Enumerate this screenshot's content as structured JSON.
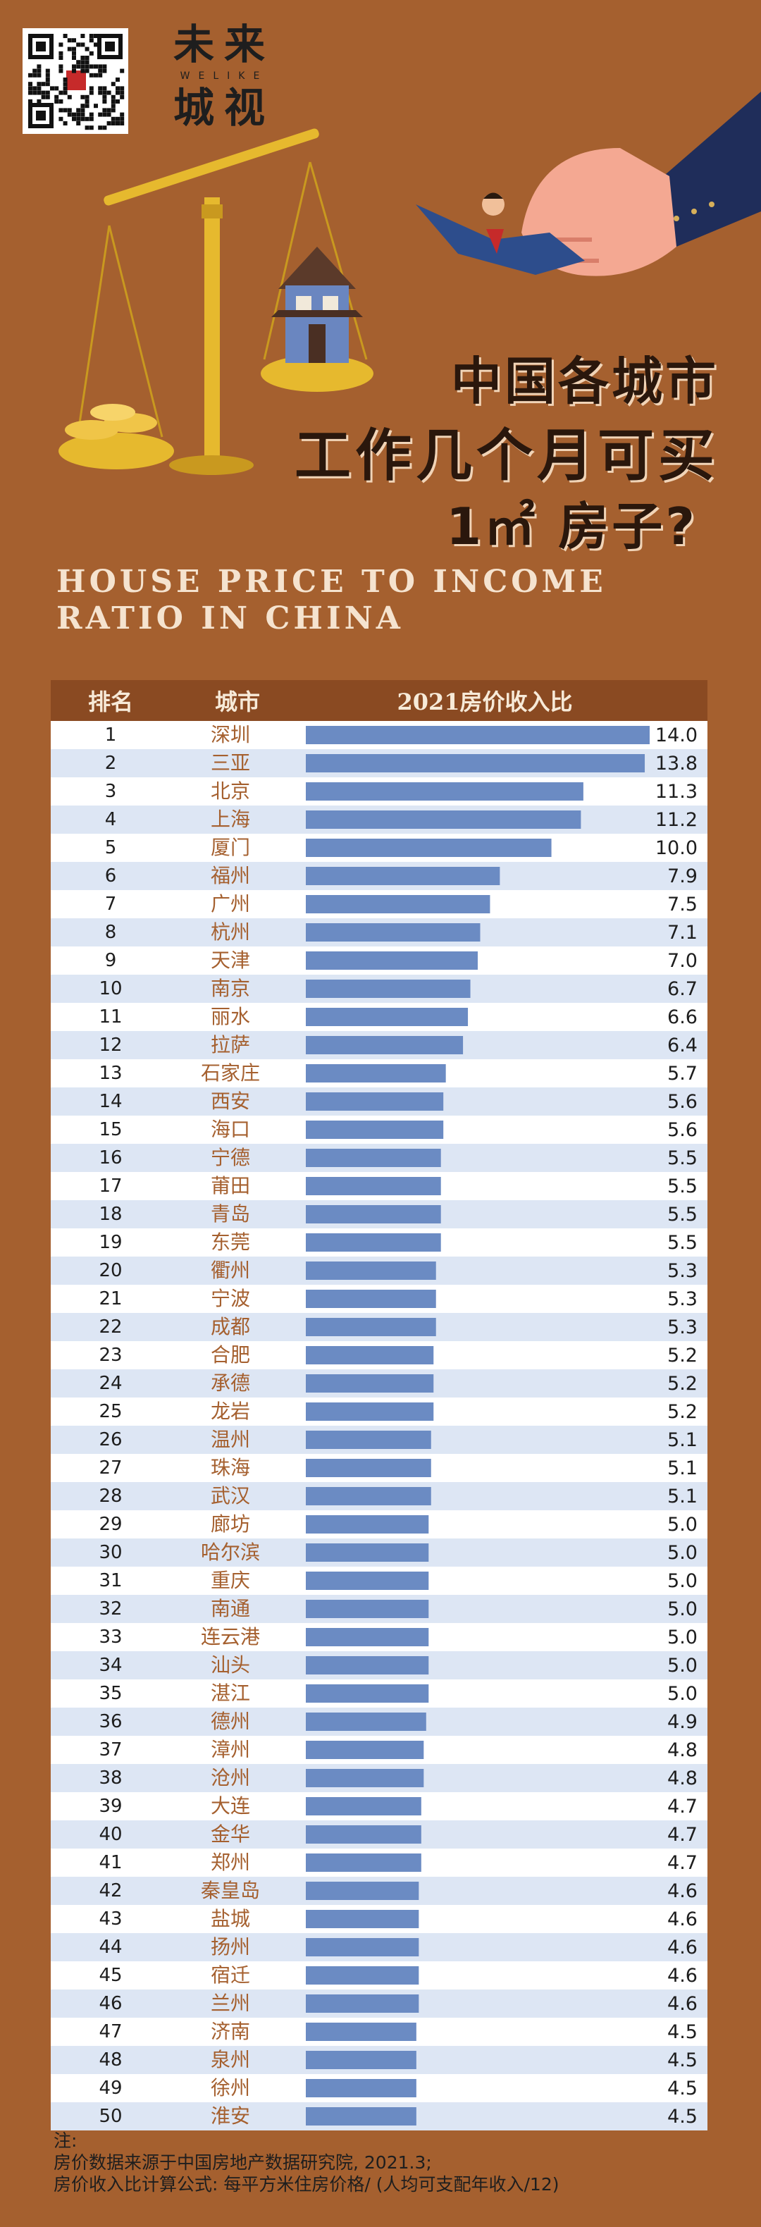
{
  "brand": {
    "line1": "未来",
    "en": "WELIKE",
    "line2": "城视"
  },
  "title": {
    "line1": "中国各城市",
    "line2": "工作几个月可买",
    "line3": "1㎡ 房子?",
    "english": "HOUSE PRICE TO INCOME RATIO IN CHINA"
  },
  "table": {
    "col_rank": "排名",
    "col_city": "城市",
    "col_metric": "2021房价收入比"
  },
  "chart_data": {
    "type": "bar",
    "orientation": "horizontal",
    "title": "2021房价收入比",
    "categories": [
      "深圳",
      "三亚",
      "北京",
      "上海",
      "厦门",
      "福州",
      "广州",
      "杭州",
      "天津",
      "南京",
      "丽水",
      "拉萨",
      "石家庄",
      "西安",
      "海口",
      "宁德",
      "莆田",
      "青岛",
      "东莞",
      "衢州",
      "宁波",
      "成都",
      "合肥",
      "承德",
      "龙岩",
      "温州",
      "珠海",
      "武汉",
      "廊坊",
      "哈尔滨",
      "重庆",
      "南通",
      "连云港",
      "汕头",
      "湛江",
      "德州",
      "漳州",
      "沧州",
      "大连",
      "金华",
      "郑州",
      "秦皇岛",
      "盐城",
      "扬州",
      "宿迁",
      "兰州",
      "济南",
      "泉州",
      "徐州",
      "淮安"
    ],
    "ranks": [
      1,
      2,
      3,
      4,
      5,
      6,
      7,
      8,
      9,
      10,
      11,
      12,
      13,
      14,
      15,
      16,
      17,
      18,
      19,
      20,
      21,
      22,
      23,
      24,
      25,
      26,
      27,
      28,
      29,
      30,
      31,
      32,
      33,
      34,
      35,
      36,
      37,
      38,
      39,
      40,
      41,
      42,
      43,
      44,
      45,
      46,
      47,
      48,
      49,
      50
    ],
    "values": [
      14.0,
      13.8,
      11.3,
      11.2,
      10.0,
      7.9,
      7.5,
      7.1,
      7.0,
      6.7,
      6.6,
      6.4,
      5.7,
      5.6,
      5.6,
      5.5,
      5.5,
      5.5,
      5.5,
      5.3,
      5.3,
      5.3,
      5.2,
      5.2,
      5.2,
      5.1,
      5.1,
      5.1,
      5.0,
      5.0,
      5.0,
      5.0,
      5.0,
      5.0,
      5.0,
      4.9,
      4.8,
      4.8,
      4.7,
      4.7,
      4.7,
      4.6,
      4.6,
      4.6,
      4.6,
      4.6,
      4.5,
      4.5,
      4.5,
      4.5
    ],
    "xlim": [
      0,
      14.0
    ],
    "bar_color": "#6b8bc3",
    "row_colors": [
      "#ffffff",
      "#dde6f4"
    ],
    "rank_color": "#1e1e1e",
    "city_color": "#a5602f"
  },
  "notes": {
    "label": "注:",
    "source": "房价数据来源于中国房地产数据研究院, 2021.3;",
    "formula": "房价收入比计算公式: 每平方米住房价格/ (人均可支配年收入/12)"
  }
}
